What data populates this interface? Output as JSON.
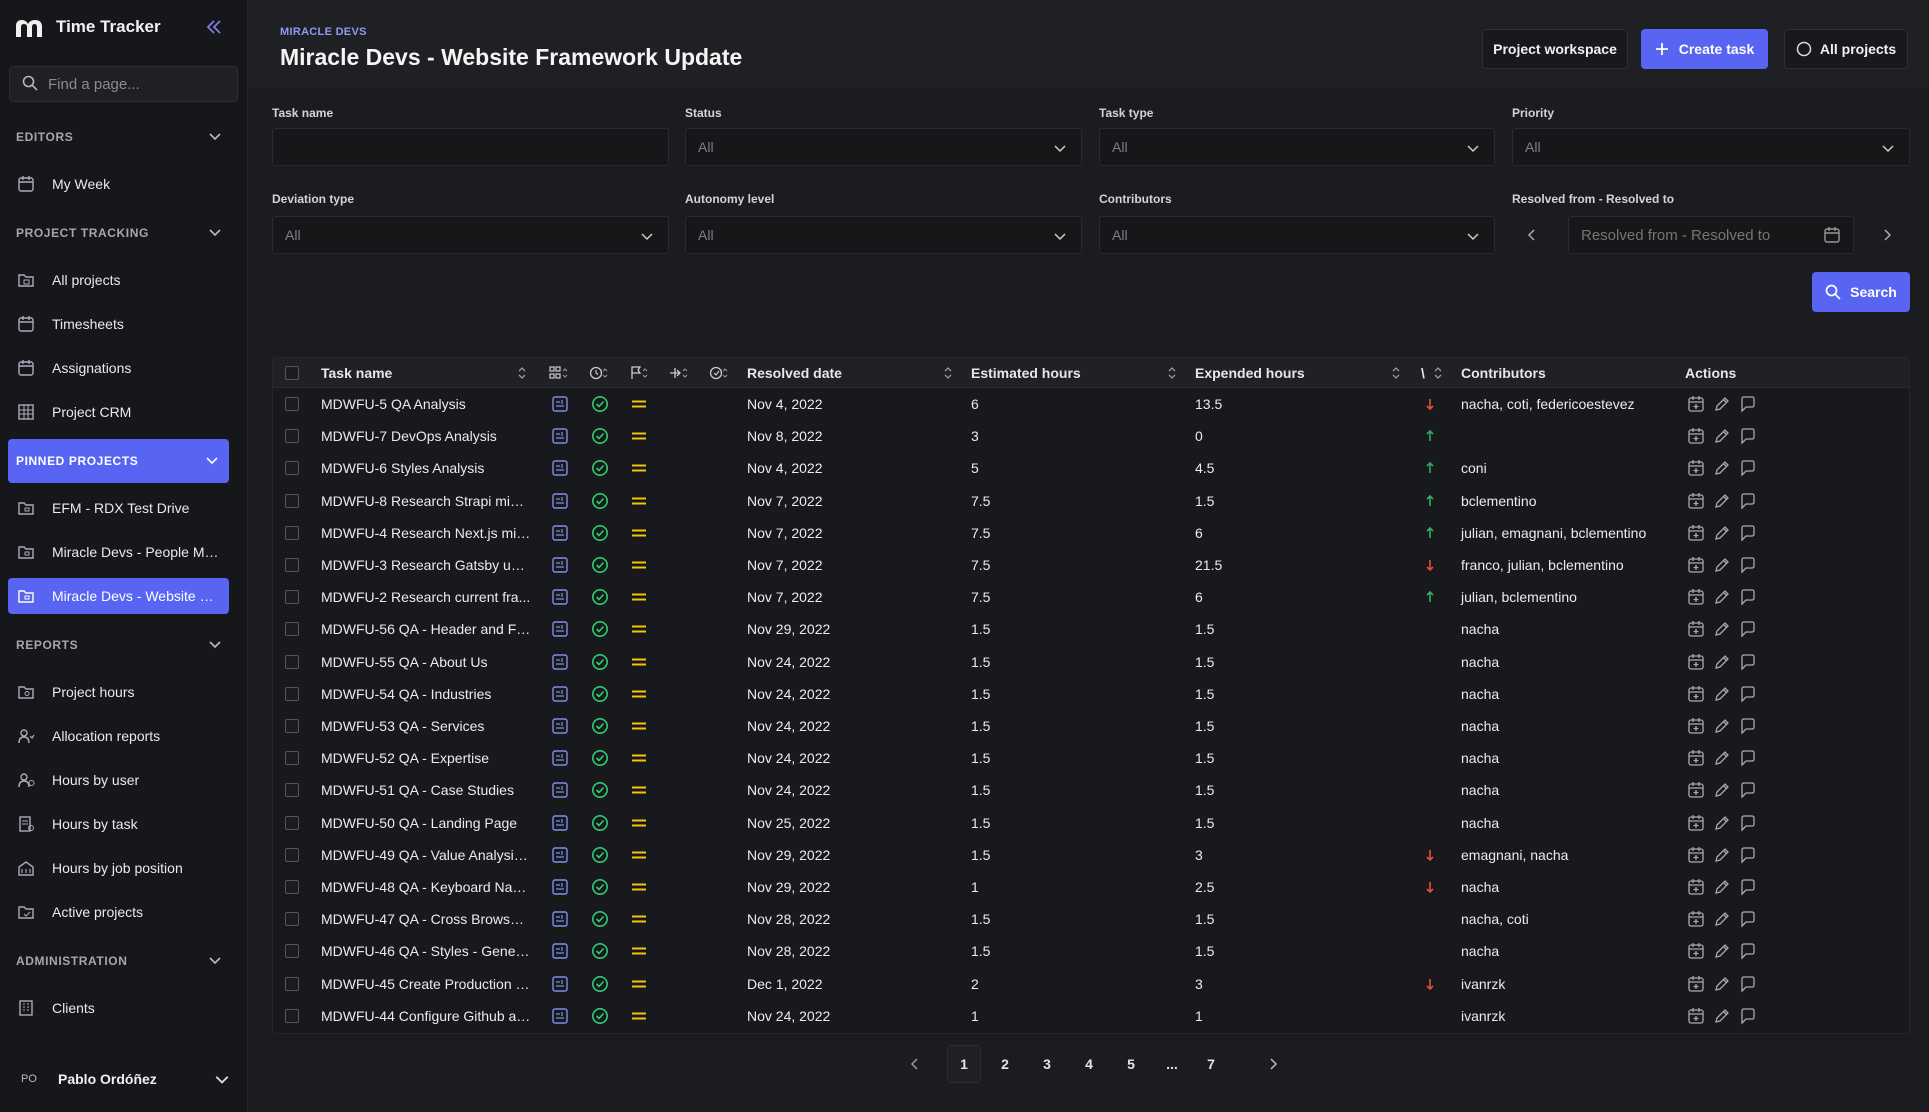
{
  "app": {
    "title": "Time Tracker",
    "logo_icon": "miracle-logo-icon"
  },
  "search": {
    "placeholder": "Find a page..."
  },
  "sidebar": {
    "sections": {
      "editors": "EDITORS",
      "project_tracking": "PROJECT TRACKING",
      "pinned_projects": "PINNED PROJECTS",
      "reports": "REPORTS",
      "administration": "ADMINISTRATION"
    },
    "editors_items": [
      {
        "label": "My Week",
        "icon": "calendar-icon"
      }
    ],
    "project_tracking_items": [
      {
        "label": "All projects",
        "icon": "folder-calendar-icon"
      },
      {
        "label": "Timesheets",
        "icon": "calendar-icon"
      },
      {
        "label": "Assignations",
        "icon": "calendar-icon"
      },
      {
        "label": "Project CRM",
        "icon": "grid-icon"
      }
    ],
    "pinned_items": [
      {
        "label": "EFM - RDX Test Drive",
        "icon": "folder-icon"
      },
      {
        "label": "Miracle Devs - People Ma...",
        "icon": "folder-icon"
      },
      {
        "label": "Miracle Devs - Website Fr...",
        "icon": "folder-icon",
        "active": true
      }
    ],
    "reports_items": [
      {
        "label": "Project hours",
        "icon": "folder-icon"
      },
      {
        "label": "Allocation reports",
        "icon": "user-icon"
      },
      {
        "label": "Hours by user",
        "icon": "user-icon"
      },
      {
        "label": "Hours by task",
        "icon": "document-icon"
      },
      {
        "label": "Hours by job position",
        "icon": "building-icon"
      },
      {
        "label": "Active projects",
        "icon": "folder-icon"
      }
    ],
    "administration_items": [
      {
        "label": "Clients",
        "icon": "building-icon"
      }
    ],
    "user": {
      "initials": "PO",
      "name": "Pablo Ordóñez"
    }
  },
  "header": {
    "eyebrow": "MIRACLE DEVS",
    "title": "Miracle Devs - Website Framework Update",
    "project_workspace_label": "Project workspace",
    "create_task_label": "Create task",
    "all_projects_label": "All projects"
  },
  "filters": {
    "task_name": {
      "label": "Task name",
      "value": ""
    },
    "status": {
      "label": "Status",
      "value": "All"
    },
    "task_type": {
      "label": "Task type",
      "value": "All"
    },
    "priority": {
      "label": "Priority",
      "value": "All"
    },
    "deviation_type": {
      "label": "Deviation type",
      "value": "All"
    },
    "autonomy_level": {
      "label": "Autonomy level",
      "value": "All"
    },
    "contributors": {
      "label": "Contributors",
      "value": "All"
    },
    "resolved_range": {
      "label": "Resolved from - Resolved to",
      "placeholder": "Resolved from - Resolved to"
    },
    "search_label": "Search"
  },
  "table": {
    "columns": {
      "task_name": "Task name",
      "resolved_date": "Resolved date",
      "estimated_hours": "Estimated hours",
      "expended_hours": "Expended hours",
      "deviation": "\\",
      "contributors": "Contributors",
      "actions": "Actions"
    },
    "rows": [
      {
        "name": "MDWFU-5 QA Analysis",
        "date": "Nov 4, 2022",
        "est": "6",
        "exp": "13.5",
        "dev": "down",
        "contributors": "nacha, coti, federicoestevez"
      },
      {
        "name": "MDWFU-7 DevOps Analysis",
        "date": "Nov 8, 2022",
        "est": "3",
        "exp": "0",
        "dev": "up",
        "contributors": ""
      },
      {
        "name": "MDWFU-6 Styles Analysis",
        "date": "Nov 4, 2022",
        "est": "5",
        "exp": "4.5",
        "dev": "up",
        "contributors": "coni"
      },
      {
        "name": "MDWFU-8 Research Strapi migr...",
        "date": "Nov 7, 2022",
        "est": "7.5",
        "exp": "1.5",
        "dev": "up",
        "contributors": "bclementino"
      },
      {
        "name": "MDWFU-4 Research Next.js mig...",
        "date": "Nov 7, 2022",
        "est": "7.5",
        "exp": "6",
        "dev": "up",
        "contributors": "julian, emagnani, bclementino"
      },
      {
        "name": "MDWFU-3 Research Gatsby upd...",
        "date": "Nov 7, 2022",
        "est": "7.5",
        "exp": "21.5",
        "dev": "down",
        "contributors": "franco, julian, bclementino"
      },
      {
        "name": "MDWFU-2 Research current fra...",
        "date": "Nov 7, 2022",
        "est": "7.5",
        "exp": "6",
        "dev": "up",
        "contributors": "julian, bclementino"
      },
      {
        "name": "MDWFU-56 QA - Header and Fo...",
        "date": "Nov 29, 2022",
        "est": "1.5",
        "exp": "1.5",
        "dev": "",
        "contributors": "nacha"
      },
      {
        "name": "MDWFU-55 QA - About Us",
        "date": "Nov 24, 2022",
        "est": "1.5",
        "exp": "1.5",
        "dev": "",
        "contributors": "nacha"
      },
      {
        "name": "MDWFU-54 QA - Industries",
        "date": "Nov 24, 2022",
        "est": "1.5",
        "exp": "1.5",
        "dev": "",
        "contributors": "nacha"
      },
      {
        "name": "MDWFU-53 QA - Services",
        "date": "Nov 24, 2022",
        "est": "1.5",
        "exp": "1.5",
        "dev": "",
        "contributors": "nacha"
      },
      {
        "name": "MDWFU-52 QA - Expertise",
        "date": "Nov 24, 2022",
        "est": "1.5",
        "exp": "1.5",
        "dev": "",
        "contributors": "nacha"
      },
      {
        "name": "MDWFU-51 QA - Case Studies",
        "date": "Nov 24, 2022",
        "est": "1.5",
        "exp": "1.5",
        "dev": "",
        "contributors": "nacha"
      },
      {
        "name": "MDWFU-50 QA - Landing Page",
        "date": "Nov 25, 2022",
        "est": "1.5",
        "exp": "1.5",
        "dev": "",
        "contributors": "nacha"
      },
      {
        "name": "MDWFU-49 QA - Value Analysis ...",
        "date": "Nov 29, 2022",
        "est": "1.5",
        "exp": "3",
        "dev": "down",
        "contributors": "emagnani, nacha"
      },
      {
        "name": "MDWFU-48 QA - Keyboard Navi...",
        "date": "Nov 29, 2022",
        "est": "1",
        "exp": "2.5",
        "dev": "down",
        "contributors": "nacha"
      },
      {
        "name": "MDWFU-47 QA - Cross Browser ...",
        "date": "Nov 28, 2022",
        "est": "1.5",
        "exp": "1.5",
        "dev": "",
        "contributors": "nacha, coti"
      },
      {
        "name": "MDWFU-46 QA - Styles - General",
        "date": "Nov 28, 2022",
        "est": "1.5",
        "exp": "1.5",
        "dev": "",
        "contributors": "nacha"
      },
      {
        "name": "MDWFU-45 Create Production e...",
        "date": "Dec 1, 2022",
        "est": "2",
        "exp": "3",
        "dev": "down",
        "contributors": "ivanrzk"
      },
      {
        "name": "MDWFU-44 Configure Github ac...",
        "date": "Nov 24, 2022",
        "est": "1",
        "exp": "1",
        "dev": "",
        "contributors": "ivanrzk"
      }
    ]
  },
  "pagination": {
    "pages": [
      "1",
      "2",
      "3",
      "4",
      "5",
      "...",
      "7"
    ],
    "current": "1"
  },
  "colors": {
    "accent": "#5865f2",
    "success": "#2ecc71",
    "priority": "#f1c40f",
    "dev_down": "#e74c3c",
    "dev_up": "#27ae60"
  }
}
